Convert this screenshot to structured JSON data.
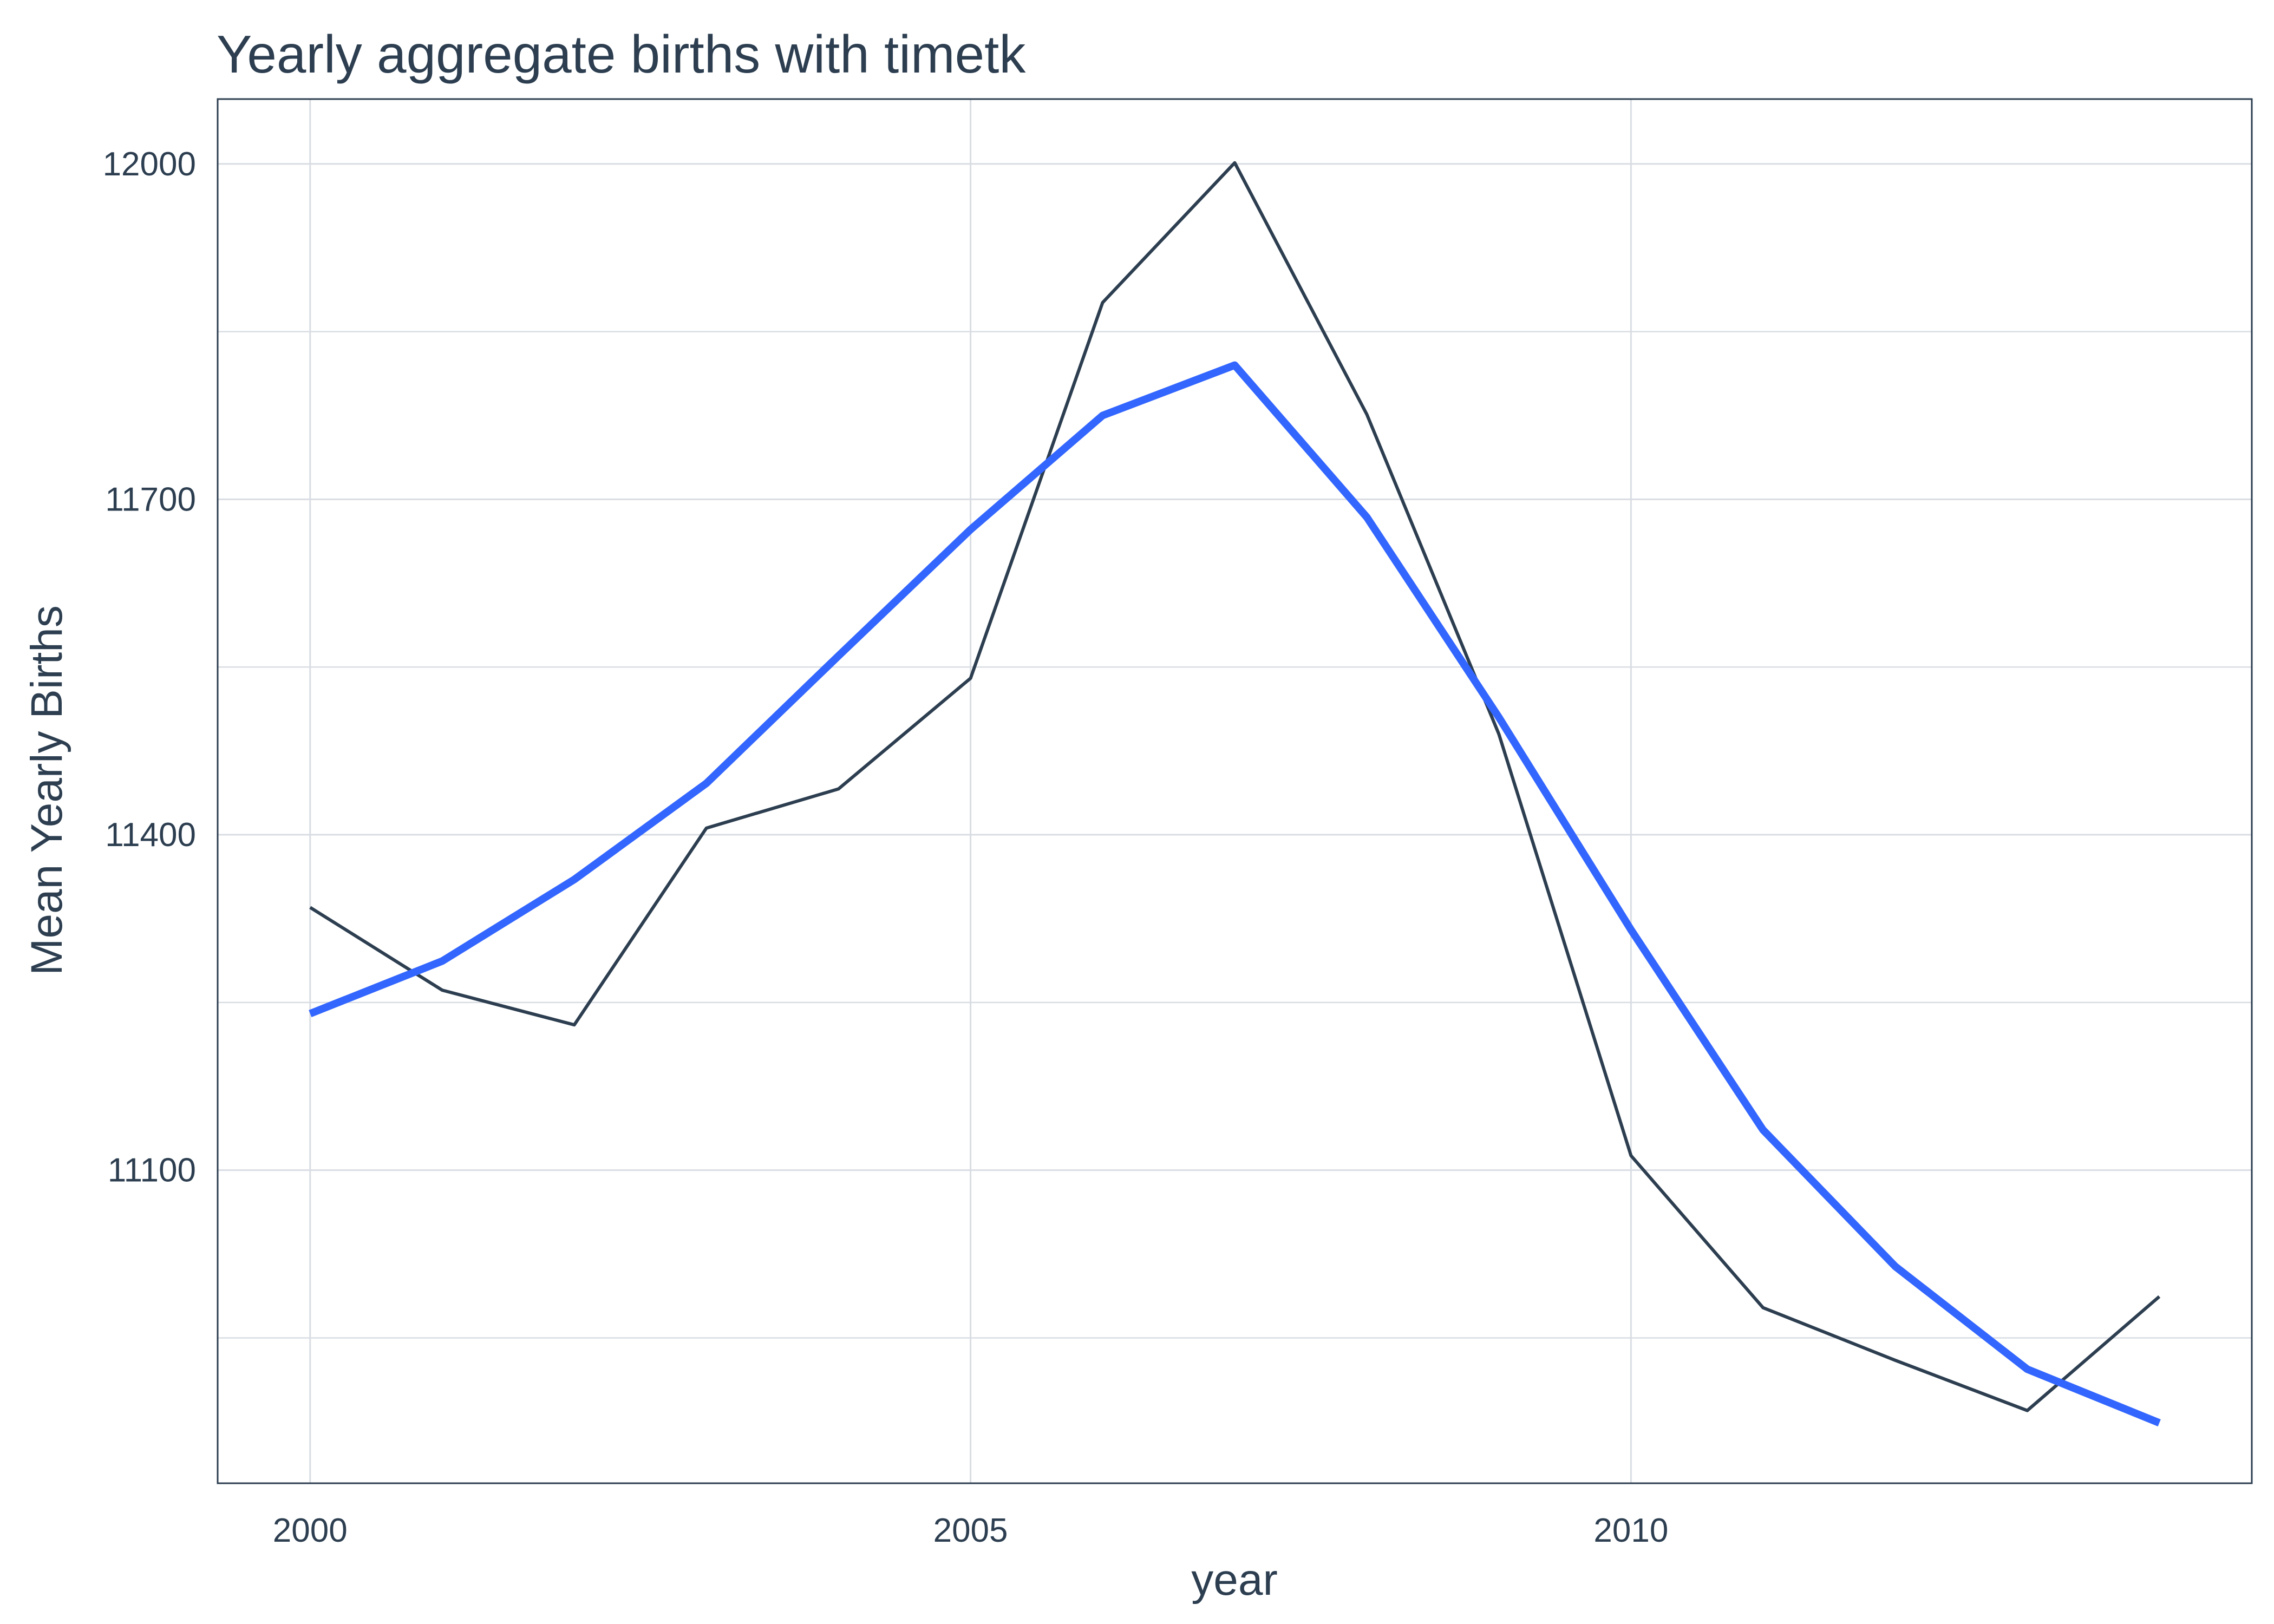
{
  "chart_data": {
    "type": "line",
    "title": "Yearly aggregate births with timetk",
    "xlabel": "year",
    "ylabel": "Mean Yearly Births",
    "xlim": [
      1999.3,
      2014.7
    ],
    "ylim": [
      10820,
      12058
    ],
    "x_ticks": [
      2000,
      2005,
      2010
    ],
    "x_tick_labels": [
      "2000",
      "2005",
      "2010"
    ],
    "y_ticks": [
      11100,
      11400,
      11700,
      12000
    ],
    "y_tick_labels": [
      "11100",
      "11400",
      "11700",
      "12000"
    ],
    "y_minor_gridlines": [
      10950,
      11250,
      11550,
      11850
    ],
    "x_minor_gridlines": [
      2002.5,
      2007.5,
      2012.5
    ],
    "grid": true,
    "legend": "none",
    "x": [
      2000,
      2001,
      2002,
      2003,
      2004,
      2005,
      2006,
      2007,
      2008,
      2009,
      2010,
      2011,
      2012,
      2013,
      2014
    ],
    "series": [
      {
        "values": [
          11335,
          11261,
          11230,
          11406,
          11441,
          11540,
          11876,
          12001,
          11776,
          11490,
          11113,
          10977,
          10930,
          10885,
          10987
        ],
        "color": "#2c3e50",
        "width": 6
      },
      {
        "values": [
          11240,
          11287,
          11360,
          11446,
          11560,
          11673,
          11775,
          11820,
          11684,
          11505,
          11315,
          11136,
          11014,
          10922,
          10874
        ],
        "color": "#3366ff",
        "width": 14
      }
    ],
    "colors": {
      "text": "#2c3e50",
      "grid": "#d9dde3",
      "panel_border": "#2c3e50"
    }
  }
}
